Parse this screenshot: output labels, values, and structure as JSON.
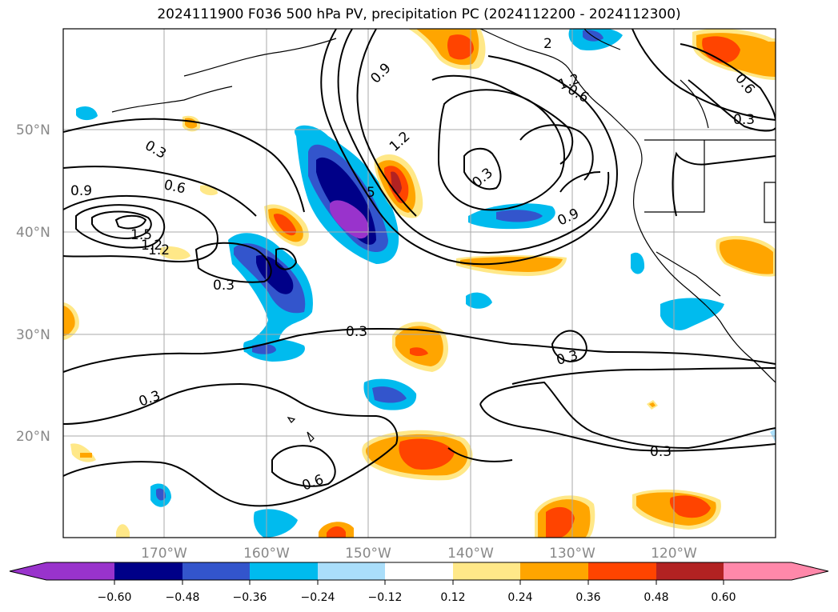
{
  "title": "2024111900 F036 500 hPa PV, precipitation PC (2024112200 - 2024112300)",
  "lat_labels": [
    "50°N",
    "40°N",
    "30°N",
    "20°N"
  ],
  "lon_labels": [
    "170°W",
    "160°W",
    "150°W",
    "140°W",
    "130°W",
    "120°W"
  ],
  "contour_labels": [
    "0.3",
    "0.6",
    "0.9",
    "1.2",
    "1.5",
    "1.2",
    "0.3",
    "0.9",
    "1.2",
    "0.3",
    "0.9",
    "0.6",
    "0.3",
    "0.3",
    "0.3",
    "0.3",
    "0.6",
    "0.3",
    "1.2",
    "0.6",
    "5",
    "2"
  ],
  "colorbar": {
    "ticks": [
      "−0.60",
      "−0.48",
      "−0.36",
      "−0.24",
      "−0.12",
      "0.12",
      "0.24",
      "0.36",
      "0.48",
      "0.60"
    ],
    "colors": [
      "#9933cc",
      "#000088",
      "#3355cc",
      "#00bbee",
      "#aadefa",
      "#ffffff",
      "#ffe888",
      "#ffa500",
      "#ff4400",
      "#b22222",
      "#ff88aa"
    ]
  }
}
